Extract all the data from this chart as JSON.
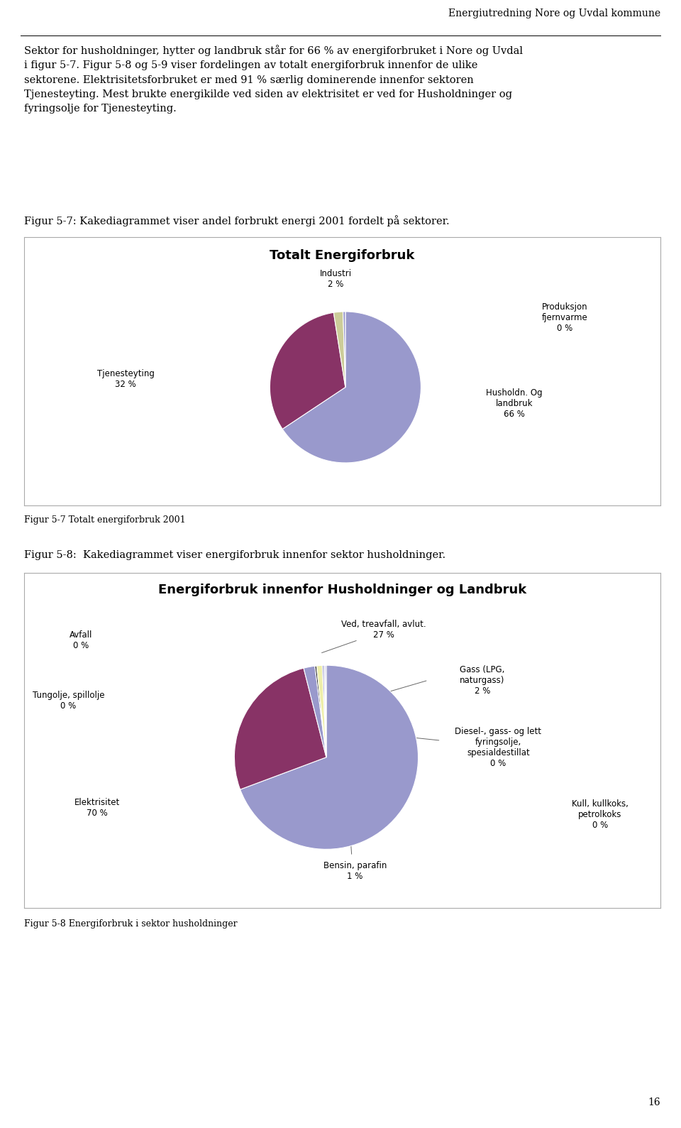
{
  "page_title": "Energiutredning Nore og Uvdal kommune",
  "body_text": "Sektor for husholdninger, hytter og landbruk står for 66 % av energiforbruket i Nore og Uvdal\ni figur 5-7. Figur 5-8 og 5-9 viser fordelingen av totalt energiforbruk innenfor de ulike\nsektorene. Elektrisitetsforbruket er med 91 % særlig dominerende innenfor sektoren\nTjenesteyting. Mest brukte energikilde ved siden av elektrisitet er ved for Husholdninger og\nfyringsolje for Tjenesteyting.",
  "fig57_caption": "Figur 5-7: Kakediagrammet viser andel forbrukt energi 2001 fordelt på sektorer.",
  "fig57_title": "Totalt Energiforbruk",
  "fig57_values": [
    66,
    32,
    2,
    0.5
  ],
  "fig57_colors": [
    "#9999cc",
    "#883366",
    "#cccc99",
    "#9999cc"
  ],
  "fig57_footer": "Figur 5-7 Totalt energiforbruk 2001",
  "fig58_caption": "Figur 5-8:  Kakediagrammet viser energiforbruk innenfor sektor husholdninger.",
  "fig58_title": "Energiforbruk innenfor Husholdninger og Landbruk",
  "fig58_values": [
    70,
    27,
    2,
    0.3,
    1,
    0.3,
    0.2,
    0.2
  ],
  "fig58_colors": [
    "#9999cc",
    "#883366",
    "#9999cc",
    "#111111",
    "#eeeeaa",
    "#9999cc",
    "#9999cc",
    "#9999cc"
  ],
  "fig58_footer": "Figur 5-8 Energiforbruk i sektor husholdninger",
  "background_color": "#ffffff",
  "box_edge_color": "#aaaaaa",
  "text_color": "#000000",
  "font_size_body": 10.5,
  "font_size_caption": 10.5,
  "font_size_pie_title": 13,
  "font_size_pie_label": 8.5,
  "font_size_footer": 9,
  "font_size_header": 10,
  "page_number": "16"
}
